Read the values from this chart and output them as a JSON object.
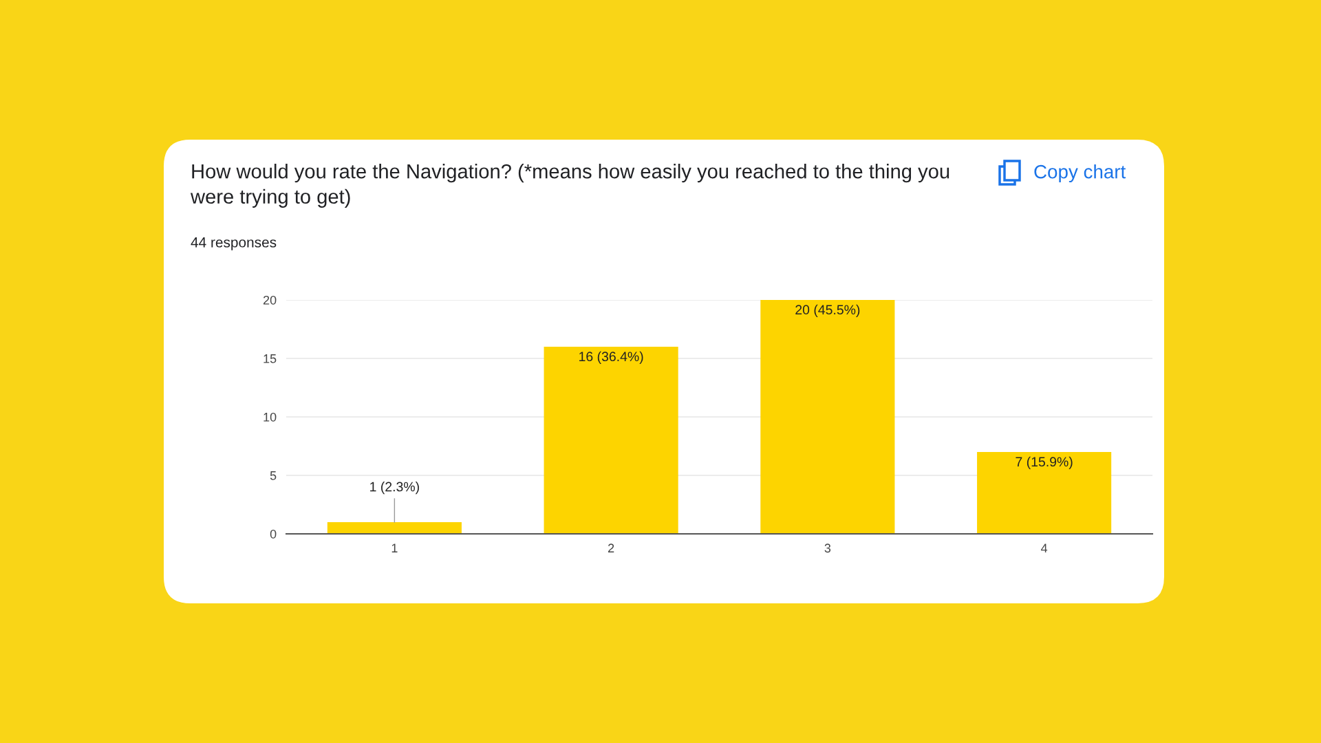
{
  "chart_data": {
    "type": "bar",
    "title": "How would you rate the Navigation? (*means how easily you reached to the thing you were trying to get)",
    "subtitle": "44 responses",
    "categories": [
      "1",
      "2",
      "3",
      "4"
    ],
    "values": [
      1,
      16,
      20,
      7
    ],
    "value_labels": [
      "1 (2.3%)",
      "16 (36.4%)",
      "20 (45.5%)",
      "7 (15.9%)"
    ],
    "color": "#fdd400",
    "ylim": [
      0,
      20
    ],
    "yticks": [
      0,
      5,
      10,
      15,
      20
    ],
    "grid": "y",
    "annotations": [
      "Copy chart"
    ]
  }
}
